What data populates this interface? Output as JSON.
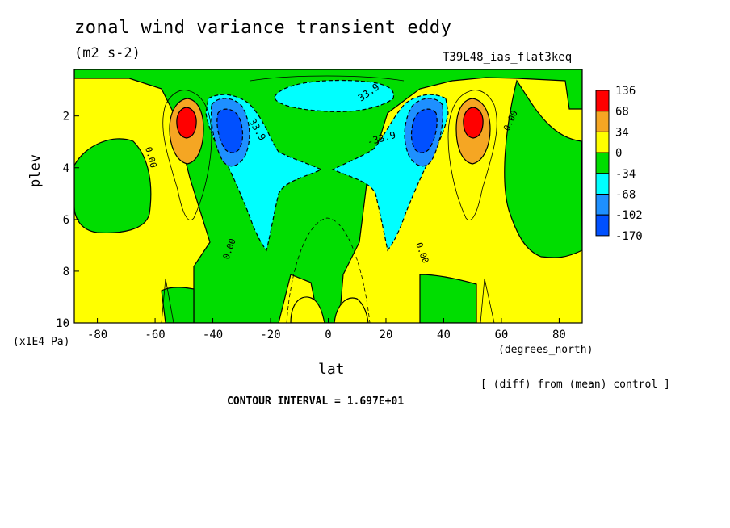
{
  "chart_data": {
    "type": "heatmap",
    "title": "zonal wind variance transient eddy",
    "subtitle": "(m2 s-2)",
    "run_label": "T39L48_ias_flat3keq",
    "xlabel": "lat",
    "x_units": "(degrees_north)",
    "ylabel": "plev",
    "y_units": "(x1E4 Pa)",
    "note": "[ (diff) from (mean) control ]",
    "contour_interval_label": "CONTOUR INTERVAL = 1.697E+01",
    "xlim": [
      -88,
      88
    ],
    "ylim": [
      0.2,
      10
    ],
    "y_reversed": true,
    "x_ticks": [
      "-80",
      "-60",
      "-40",
      "-20",
      "0",
      "20",
      "40",
      "60",
      "80"
    ],
    "y_ticks": [
      "2",
      "4",
      "6",
      "8",
      "10"
    ],
    "colorbar": {
      "labels": [
        "136",
        "68",
        "34",
        "0",
        "-34",
        "-68",
        "-102",
        "-170"
      ],
      "colors": [
        "#ff0000",
        "#f5a623",
        "#ffff00",
        "#00dd00",
        "#00ffff",
        "#1e90ff",
        "#0050ff"
      ]
    },
    "contour_labels": [
      "33.9",
      "33.9",
      "-33.9",
      "0.00",
      "0.00",
      "0.00",
      "0.00"
    ],
    "features": [
      {
        "kind": "max",
        "lat": -50,
        "plev": 2.1,
        "value": 136
      },
      {
        "kind": "max",
        "lat": 50,
        "plev": 2.1,
        "value": 136
      },
      {
        "kind": "min",
        "lat": -35,
        "plev": 2.4,
        "value": -102
      },
      {
        "kind": "min",
        "lat": 35,
        "plev": 2.4,
        "value": -102
      },
      {
        "kind": "min",
        "lat": 0,
        "plev": 1.0,
        "value": -34
      }
    ]
  }
}
